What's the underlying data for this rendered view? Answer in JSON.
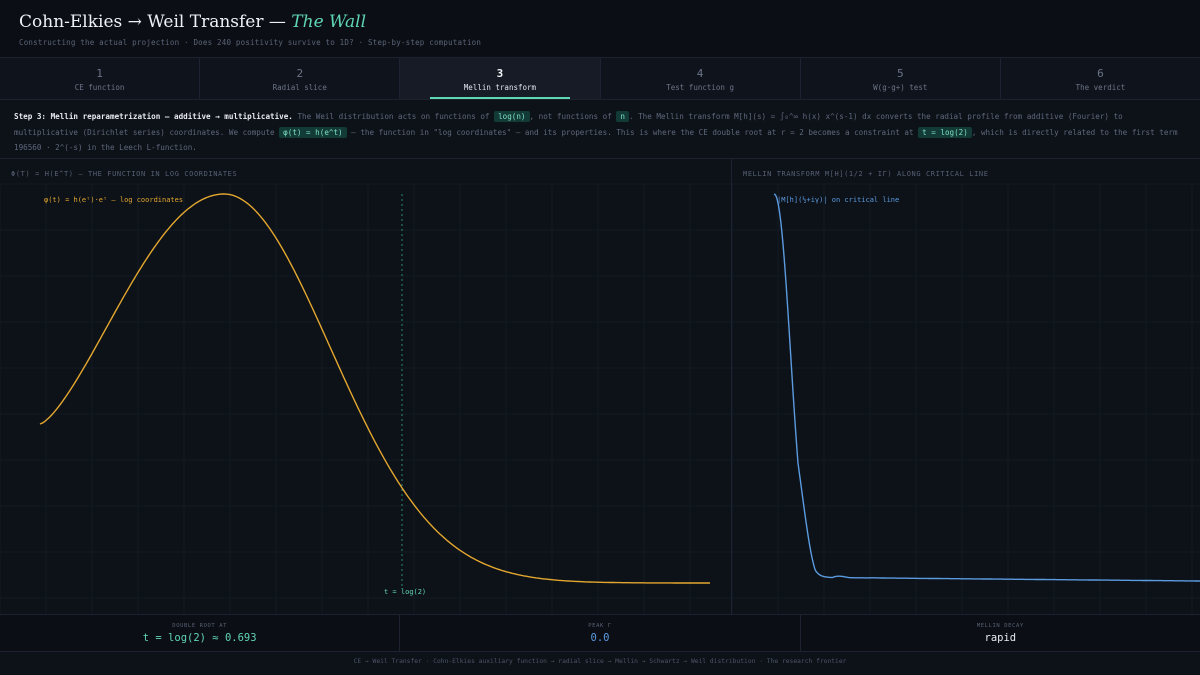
{
  "header": {
    "title_main": "Cohn-Elkies → Weil Transfer —",
    "title_accent": "The Wall",
    "subtitle": "Constructing the actual projection · Does 240 positivity survive to 1D? · Step-by-step computation"
  },
  "tabs": [
    {
      "num": "1",
      "label": "CE function"
    },
    {
      "num": "2",
      "label": "Radial slice"
    },
    {
      "num": "3",
      "label": "Mellin transform"
    },
    {
      "num": "4",
      "label": "Test function g"
    },
    {
      "num": "5",
      "label": "W(g·g+) test"
    },
    {
      "num": "6",
      "label": "The verdict"
    }
  ],
  "active_tab": 2,
  "description": {
    "lead": "Step 3: Mellin reparametrization — additive → multiplicative.",
    "t1": " The Weil distribution acts on functions of ",
    "c1": "log(n)",
    "t2": ", not functions of ",
    "c2": "n",
    "t3": ". The Mellin transform M[h](s) = ∫₀^∞ h(x) x^(s-1) dx converts the radial profile from additive (Fourier) to multiplicative (Dirichlet series) coordinates. We compute ",
    "c3": "φ(t) = h(e^t)",
    "t4": " — the function in \"log coordinates\" — and its properties. This is where the CE double root at r = 2 becomes a constraint at ",
    "c4": "t = log(2)",
    "t5": ", which is directly related to the first term 196560 · 2^(-s) in the Leech L-function."
  },
  "left_panel": {
    "title": "Φ(T) = H(E^T) — THE FUNCTION IN LOG COORDINATES",
    "legend": "φ(t) = h(eᵗ)·eᵗ — log coordinates",
    "marker_label": "t = log(2)"
  },
  "right_panel": {
    "title": "MELLIN TRANSFORM M[H](1/2 + IΓ) ALONG CRITICAL LINE",
    "legend": "|M[h](½+iγ)| on critical line"
  },
  "stats": [
    {
      "label": "DOUBLE ROOT AT",
      "value": "t = log(2) ≈ 0.693",
      "color": "#5fd6b4"
    },
    {
      "label": "PEAK Γ",
      "value": "0.0",
      "color": "#5b9be0"
    },
    {
      "label": "MELLIN DECAY",
      "value": "rapid",
      "color": "#e6e9ef"
    }
  ],
  "footer": "CE → Weil Transfer · Cohn-Elkies auxiliary function → radial slice → Mellin → Schwartz → Weil distribution · The research frontier",
  "colors": {
    "accent": "#5fd6b4",
    "left_curve": "#e3a72f",
    "right_curve": "#5b9be0",
    "marker": "#2a8a78"
  }
}
